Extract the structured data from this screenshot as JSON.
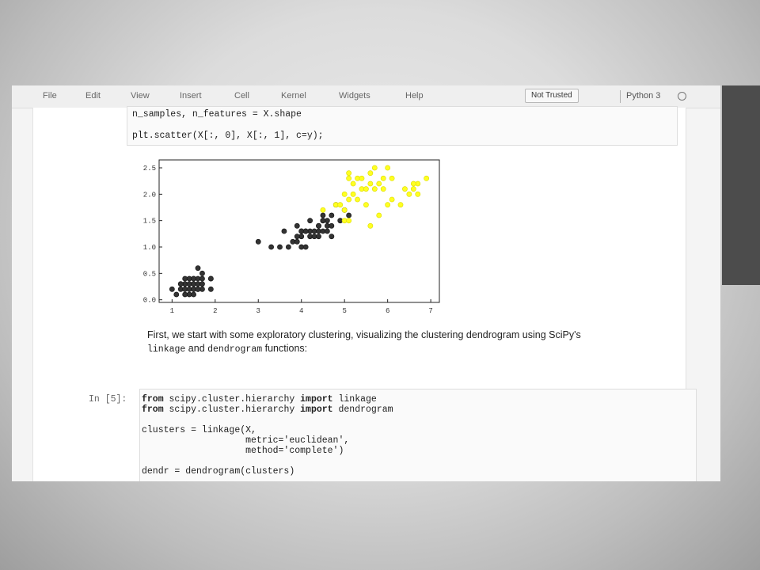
{
  "menubar": {
    "items": [
      "File",
      "Edit",
      "View",
      "Insert",
      "Cell",
      "Kernel",
      "Widgets",
      "Help"
    ],
    "trust_label": "Not Trusted",
    "kernel_name": "Python 3"
  },
  "top_cell": {
    "line1": "n_samples, n_features = X.shape",
    "line2": "plt.scatter(X[:, 0], X[:, 1], c=y);"
  },
  "chart_data": {
    "type": "scatter",
    "xlim": [
      0.7,
      7.2
    ],
    "ylim": [
      -0.05,
      2.65
    ],
    "x_ticks": [
      1,
      2,
      3,
      4,
      5,
      6,
      7
    ],
    "y_ticks": [
      0.0,
      0.5,
      1.0,
      1.5,
      2.0,
      2.5
    ],
    "x_tick_labels": [
      "1",
      "2",
      "3",
      "4",
      "5",
      "6",
      "7"
    ],
    "y_tick_labels": [
      "0.0",
      "0.5",
      "1.0",
      "1.5",
      "2.0",
      "2.5"
    ],
    "grid": false,
    "colors": {
      "dark": "#333333",
      "yellow": "#ffff22"
    },
    "series": [
      {
        "color": "dark",
        "x": [
          1.0,
          1.1,
          1.2,
          1.3,
          1.3,
          1.4,
          1.4,
          1.4,
          1.5,
          1.5,
          1.5,
          1.5,
          1.6,
          1.6,
          1.6,
          1.7,
          1.7,
          1.7,
          1.9,
          1.9,
          1.2,
          1.3,
          1.4,
          1.5,
          1.6,
          1.7,
          1.3,
          1.5,
          1.9,
          1.6
        ],
        "y": [
          0.2,
          0.1,
          0.2,
          0.2,
          0.3,
          0.2,
          0.3,
          0.1,
          0.2,
          0.4,
          0.1,
          0.3,
          0.2,
          0.4,
          0.6,
          0.4,
          0.2,
          0.5,
          0.2,
          0.4,
          0.3,
          0.4,
          0.4,
          0.2,
          0.3,
          0.3,
          0.1,
          0.4,
          0.4,
          0.2
        ]
      },
      {
        "color": "dark",
        "x": [
          3.0,
          3.3,
          3.5,
          3.6,
          3.7,
          3.8,
          3.9,
          3.9,
          4.0,
          4.0,
          4.0,
          4.1,
          4.1,
          4.2,
          4.2,
          4.3,
          4.3,
          4.4,
          4.4,
          4.4,
          4.5,
          4.5,
          4.5,
          4.5,
          4.6,
          4.6,
          4.7,
          4.7,
          4.7,
          4.8,
          4.9,
          5.0,
          5.1,
          4.6,
          4.4,
          4.2,
          4.0,
          4.5,
          4.1,
          3.9
        ],
        "y": [
          1.1,
          1.0,
          1.0,
          1.3,
          1.0,
          1.1,
          1.1,
          1.4,
          1.0,
          1.2,
          1.3,
          1.3,
          1.0,
          1.2,
          1.3,
          1.3,
          1.2,
          1.2,
          1.3,
          1.4,
          1.5,
          1.3,
          1.6,
          1.5,
          1.4,
          1.5,
          1.4,
          1.2,
          1.6,
          1.8,
          1.5,
          1.7,
          1.6,
          1.3,
          1.4,
          1.5,
          1.3,
          1.5,
          1.3,
          1.2
        ]
      },
      {
        "color": "yellow",
        "x": [
          4.5,
          4.8,
          4.9,
          5.0,
          5.0,
          5.1,
          5.1,
          5.1,
          5.2,
          5.3,
          5.4,
          5.5,
          5.5,
          5.6,
          5.6,
          5.7,
          5.8,
          5.8,
          5.9,
          6.0,
          6.0,
          6.1,
          6.1,
          6.3,
          6.4,
          6.6,
          6.7,
          6.7,
          6.9,
          5.7,
          5.6,
          5.4,
          5.9,
          5.1,
          5.0,
          5.2,
          5.3,
          6.5,
          6.6
        ],
        "y": [
          1.7,
          1.8,
          1.8,
          1.5,
          2.0,
          1.9,
          2.3,
          2.4,
          2.0,
          2.3,
          2.1,
          1.8,
          2.1,
          2.4,
          2.2,
          2.1,
          2.2,
          1.6,
          2.3,
          1.8,
          2.5,
          2.3,
          1.9,
          1.8,
          2.1,
          2.1,
          2.2,
          2.0,
          2.3,
          2.5,
          1.4,
          2.3,
          2.1,
          1.5,
          1.7,
          2.2,
          1.9,
          2.0,
          2.2
        ]
      }
    ]
  },
  "markdown": {
    "line1": "First, we start with some exploratory clustering, visualizing the clustering dendrogram using SciPy's",
    "code1": "linkage",
    "and": " and ",
    "code2": "dendrogram",
    "tail": " functions:"
  },
  "cell5": {
    "prompt": "In [5]:",
    "kw_from": "from",
    "kw_import": "import",
    "module": "scipy.cluster.hierarchy",
    "name1": "linkage",
    "name2": "dendrogram",
    "line3": "clusters = linkage(X,",
    "line4": "                   metric='euclidean',",
    "line5": "                   method='complete')",
    "line6": "dendr = dendrogram(clusters)"
  }
}
